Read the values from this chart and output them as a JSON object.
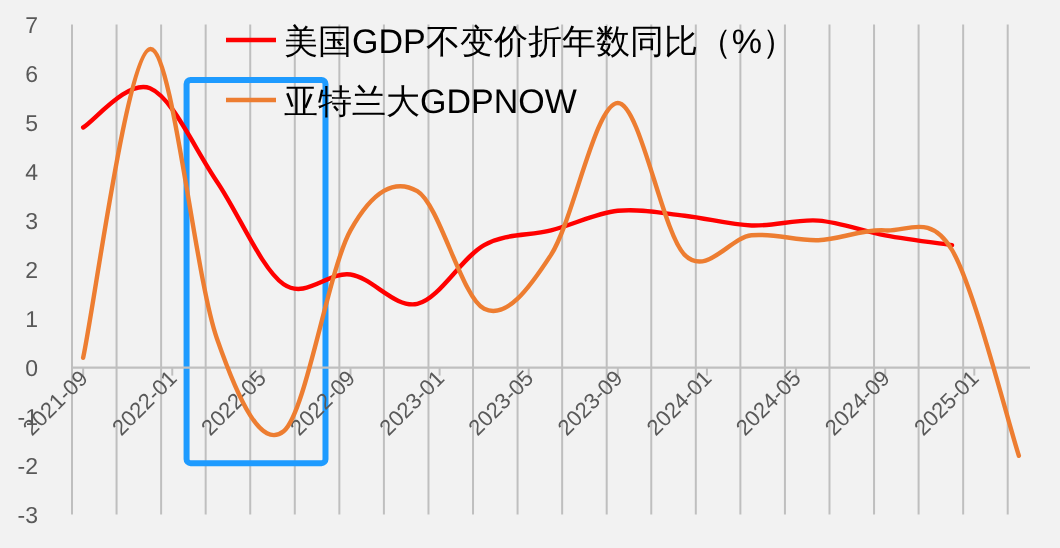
{
  "chart_data": {
    "type": "line",
    "x": [
      "2021-09",
      "2021-12",
      "2022-03",
      "2022-06",
      "2022-09",
      "2022-12",
      "2023-03",
      "2023-06",
      "2023-09",
      "2023-12",
      "2024-03",
      "2024-06",
      "2024-09",
      "2024-12",
      "2025-03"
    ],
    "series": [
      {
        "name": "美国GDP不变价折年数同比（%）",
        "color": "#ff0000",
        "values": [
          4.9,
          5.7,
          3.8,
          1.7,
          1.9,
          1.3,
          2.5,
          2.8,
          3.2,
          3.1,
          2.9,
          3.0,
          2.7,
          2.5,
          null
        ]
      },
      {
        "name": "亚特兰大GDPNOW",
        "color": "#ed7d31",
        "values": [
          0.2,
          6.5,
          0.6,
          -1.3,
          2.8,
          3.6,
          1.2,
          2.3,
          5.4,
          2.3,
          2.7,
          2.6,
          2.8,
          2.4,
          -1.8
        ]
      }
    ],
    "ylim": [
      -3,
      7
    ],
    "yticks": [
      -3,
      -2,
      -1,
      0,
      1,
      2,
      3,
      4,
      5,
      6,
      7
    ],
    "xlim": [
      "2021-08-16",
      "2025-03-16"
    ],
    "xticks": [
      {
        "value": "2021-08-16",
        "label": null
      },
      {
        "value": "2021-09",
        "label": "2021-09"
      },
      {
        "value": "2021-10-16",
        "label": null
      },
      {
        "value": "2021-12-16",
        "label": null
      },
      {
        "value": "2022-01",
        "label": "2022-01"
      },
      {
        "value": "2022-02-16",
        "label": null
      },
      {
        "value": "2022-04-16",
        "label": null
      },
      {
        "value": "2022-05",
        "label": "2022-05"
      },
      {
        "value": "2022-06-16",
        "label": null
      },
      {
        "value": "2022-08-16",
        "label": null
      },
      {
        "value": "2022-09",
        "label": "2022-09"
      },
      {
        "value": "2022-10-16",
        "label": null
      },
      {
        "value": "2022-12-16",
        "label": null
      },
      {
        "value": "2023-01",
        "label": "2023-01"
      },
      {
        "value": "2023-02-16",
        "label": null
      },
      {
        "value": "2023-04-16",
        "label": null
      },
      {
        "value": "2023-05",
        "label": "2023-05"
      },
      {
        "value": "2023-06-16",
        "label": null
      },
      {
        "value": "2023-08-16",
        "label": null
      },
      {
        "value": "2023-09",
        "label": "2023-09"
      },
      {
        "value": "2023-10-16",
        "label": null
      },
      {
        "value": "2023-12-16",
        "label": null
      },
      {
        "value": "2024-01",
        "label": "2024-01"
      },
      {
        "value": "2024-02-16",
        "label": null
      },
      {
        "value": "2024-04-16",
        "label": null
      },
      {
        "value": "2024-05",
        "label": "2024-05"
      },
      {
        "value": "2024-06-16",
        "label": null
      },
      {
        "value": "2024-08-16",
        "label": null
      },
      {
        "value": "2024-09",
        "label": "2024-09"
      },
      {
        "value": "2024-10-16",
        "label": null
      },
      {
        "value": "2024-12-16",
        "label": null
      },
      {
        "value": "2025-01",
        "label": "2025-01"
      },
      {
        "value": "2025-02-16",
        "label": null
      }
    ],
    "grid": "x",
    "legend": "top",
    "marker": "none",
    "line_style": "solid"
  }
}
